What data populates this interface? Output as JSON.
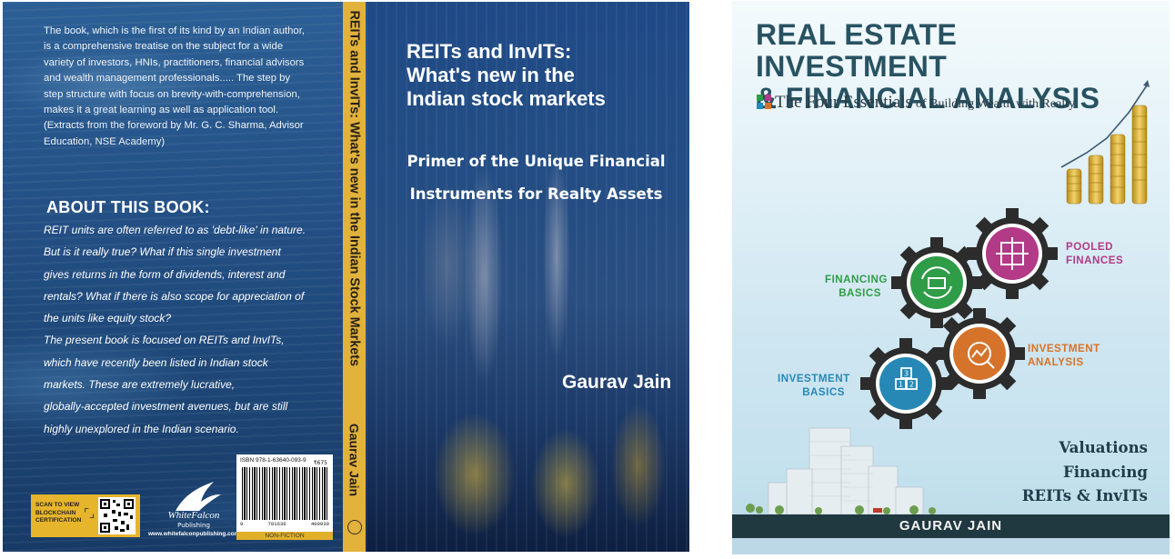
{
  "left_book": {
    "back_cover": {
      "foreword_quote_lines": [
        "The book, which is the first of its kind by an Indian author,",
        "is a comprehensive treatise on the subject for a wide",
        "variety of investors, HNIs, practitioners, financial advisors",
        "and wealth management professionals..... The step by",
        "step structure with focus on brevity-with-comprehension,",
        "makes it a great learning as well as application tool.",
        "(Extracts from the foreword by Mr. G. C. Sharma, Advisor",
        "Education, NSE Academy)"
      ],
      "about_heading": "ABOUT THIS BOOK:",
      "about_lines": [
        "REIT units are often referred to as 'debt-like' in nature.",
        "But is it really true? What if this single investment",
        "gives returns in the form of dividends, interest and",
        "rentals? What if there is also scope for appreciation of",
        "the units like equity stock?",
        "The present book is focused on REITs and InvITs,",
        "which have recently been listed in Indian stock",
        "markets. These are extremely lucrative,",
        "globally-accepted investment avenues, but are still",
        "highly unexplored in the Indian scenario."
      ],
      "qr_label": "SCAN TO VIEW BLOCKCHAIN CERTIFICATION",
      "publisher_name": "WhiteFalcon",
      "publisher_sub": "Publishing",
      "publisher_url": "www.whitefalconpublishing.com",
      "isbn": "ISBN 978-1-63640-093-9",
      "price": "₹675",
      "barcode_digits": [
        "9",
        "781636",
        "400939"
      ],
      "category": "NON-FICTION"
    },
    "spine": {
      "title": "REITs and InvITs: What's new in the Indian Stock Markets",
      "author": "Gaurav Jain"
    },
    "front_cover": {
      "title_lines": [
        "REITs and InvITs:",
        "What's new in the",
        "Indian stock markets"
      ],
      "subtitle_lines": [
        "Primer of the Unique Financial",
        "Instruments for Realty Assets"
      ],
      "author": "Gaurav Jain"
    }
  },
  "right_book": {
    "title_lines": [
      "REAL ESTATE INVESTMENT",
      "& FINANCIAL ANALYSIS"
    ],
    "essentials_big": "The Four Essentials",
    "essentials_small": "of Building Wealth with Realty",
    "gears": {
      "financing_basics": [
        "FINANCING",
        "BASICS"
      ],
      "pooled_finances": [
        "POOLED",
        "FINANCES"
      ],
      "investment_analysis": [
        "INVESTMENT",
        "ANALYSIS"
      ],
      "investment_basics": [
        "INVESTMENT",
        "BASICS"
      ],
      "block_numbers": [
        "3",
        "1",
        "2"
      ]
    },
    "topics": [
      "Valuations",
      "Financing",
      "REITs & InvITs"
    ],
    "author": "GAURAV JAIN",
    "colors": {
      "green": "#2f9c48",
      "magenta": "#b23a86",
      "orange": "#d6732a",
      "blue": "#2788b6",
      "title": "#285262"
    }
  }
}
